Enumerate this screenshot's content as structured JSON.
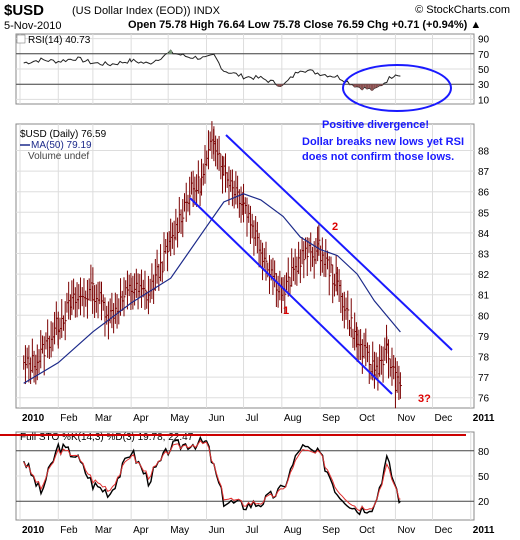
{
  "header": {
    "symbol": "$USD",
    "name": "(US Dollar Index (EOD)) INDX",
    "copyright": "© StockCharts.com",
    "date": "5-Nov-2010",
    "ohlc": "Open 75.78  High 76.64  Low 75.78  Close 76.59  Chg +0.71 (+0.94%) ▲"
  },
  "rsi_panel": {
    "label": "RSI(14) 40.73",
    "tick_labels": [
      "90",
      "70",
      "50",
      "30",
      "10"
    ],
    "overbought": 70,
    "oversold": 30
  },
  "price_panel": {
    "legend_symbol": "$USD (Daily) 76.59",
    "legend_ma": "MA(50) 79.19",
    "legend_volume": "Volume undef",
    "tick_labels": [
      "88",
      "87",
      "86",
      "85",
      "84",
      "83",
      "82",
      "81",
      "80",
      "79",
      "78",
      "77",
      "76"
    ],
    "x_labels": [
      "2010",
      "Feb",
      "Mar",
      "Apr",
      "May",
      "Jun",
      "Jul",
      "Aug",
      "Sep",
      "Oct",
      "Nov",
      "Dec",
      "2011"
    ]
  },
  "sto_panel": {
    "label": "Full STO %K(14,3) %D(3) 19.78, 22.47",
    "tick_labels": [
      "80",
      "50",
      "20"
    ],
    "x_labels": [
      "2010",
      "Feb",
      "Mar",
      "Apr",
      "May",
      "Jun",
      "Jul",
      "Aug",
      "Sep",
      "Oct",
      "Nov",
      "Dec",
      "2011"
    ]
  },
  "annotations": {
    "positive_divergence": "Positive divergence!",
    "comment_line1": "Dollar breaks new lows yet RSI",
    "comment_line2": "does not confirm those lows.",
    "point1": "1",
    "point2": "2",
    "point3": "3?"
  },
  "colors": {
    "annotation_blue": "#1a1aff",
    "label_red": "#dd0000",
    "price_bar": "#7a0000",
    "ma_line": "#1c2a8a",
    "rsi_line": "#222222",
    "sto_k": "#000000",
    "sto_d": "#e03030",
    "divider_red": "#cc0000"
  },
  "chart_data": [
    {
      "type": "line",
      "name": "RSI(14)",
      "ylim": [
        0,
        100
      ],
      "x": [
        "2010-01-04",
        "2010-01-18",
        "2010-02-01",
        "2010-02-15",
        "2010-03-01",
        "2010-03-15",
        "2010-04-01",
        "2010-04-15",
        "2010-05-03",
        "2010-05-17",
        "2010-06-01",
        "2010-06-07",
        "2010-06-15",
        "2010-07-01",
        "2010-07-15",
        "2010-08-02",
        "2010-08-16",
        "2010-09-01",
        "2010-09-15",
        "2010-10-01",
        "2010-10-15",
        "2010-11-01",
        "2010-11-05"
      ],
      "values": [
        58,
        62,
        60,
        64,
        58,
        56,
        61,
        57,
        72,
        66,
        64,
        68,
        48,
        40,
        38,
        28,
        50,
        44,
        40,
        27,
        22,
        44,
        40.73
      ]
    },
    {
      "type": "line",
      "name": "$USD (Daily)",
      "ylim": [
        75.5,
        89
      ],
      "x": [
        "2010-01-04",
        "2010-01-15",
        "2010-02-01",
        "2010-02-12",
        "2010-03-01",
        "2010-03-15",
        "2010-04-01",
        "2010-04-15",
        "2010-05-03",
        "2010-05-17",
        "2010-05-28",
        "2010-06-07",
        "2010-06-15",
        "2010-07-01",
        "2010-07-15",
        "2010-08-02",
        "2010-08-16",
        "2010-08-31",
        "2010-09-15",
        "2010-10-01",
        "2010-10-15",
        "2010-10-25",
        "2010-11-01",
        "2010-11-05"
      ],
      "values": [
        77.5,
        77.8,
        79.6,
        80.6,
        81.2,
        80.0,
        81.3,
        81.0,
        83.5,
        85.8,
        86.5,
        88.7,
        87.0,
        85.5,
        83.2,
        81.0,
        82.8,
        83.2,
        81.5,
        78.7,
        77.3,
        78.3,
        76.8,
        76.59
      ]
    },
    {
      "type": "line",
      "name": "MA(50)",
      "x": [
        "2010-01-04",
        "2010-02-01",
        "2010-03-01",
        "2010-04-01",
        "2010-05-03",
        "2010-06-01",
        "2010-06-15",
        "2010-07-01",
        "2010-07-15",
        "2010-08-02",
        "2010-08-16",
        "2010-09-01",
        "2010-09-15",
        "2010-10-01",
        "2010-10-15",
        "2010-11-05"
      ],
      "values": [
        76.7,
        77.7,
        79.2,
        80.6,
        81.8,
        84.3,
        85.5,
        85.9,
        85.6,
        84.8,
        83.8,
        83.2,
        82.9,
        82.0,
        80.7,
        79.19
      ]
    },
    {
      "type": "line",
      "name": "Full STO %K(14,3) %D(3)",
      "ylim": [
        0,
        100
      ],
      "x": [
        "2010-01-04",
        "2010-01-18",
        "2010-02-01",
        "2010-02-15",
        "2010-03-01",
        "2010-03-15",
        "2010-04-01",
        "2010-04-15",
        "2010-05-03",
        "2010-05-17",
        "2010-06-01",
        "2010-06-15",
        "2010-07-01",
        "2010-07-15",
        "2010-08-02",
        "2010-08-16",
        "2010-09-01",
        "2010-09-15",
        "2010-10-01",
        "2010-10-15",
        "2010-10-25",
        "2010-11-05"
      ],
      "values_k": [
        70,
        30,
        85,
        75,
        40,
        30,
        80,
        45,
        85,
        88,
        90,
        20,
        15,
        18,
        35,
        85,
        75,
        30,
        10,
        15,
        70,
        19.78
      ],
      "values_d": [
        68,
        35,
        80,
        76,
        45,
        34,
        76,
        50,
        83,
        87,
        89,
        25,
        17,
        19,
        33,
        80,
        76,
        34,
        12,
        15,
        62,
        22.47
      ]
    }
  ]
}
